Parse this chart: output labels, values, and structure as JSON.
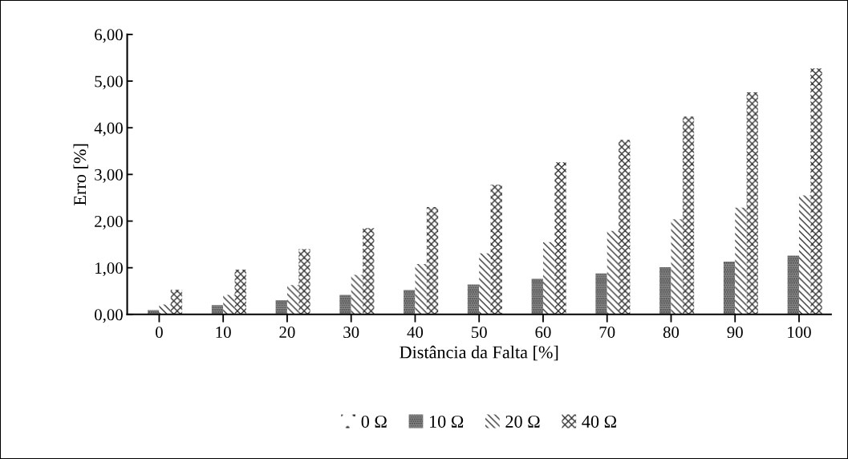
{
  "chart_data": {
    "type": "bar",
    "xlabel": "Distância da Falta [%]",
    "ylabel": "Erro [%]",
    "categories": [
      "0",
      "10",
      "20",
      "30",
      "40",
      "50",
      "60",
      "70",
      "80",
      "90",
      "100"
    ],
    "series": [
      {
        "name": "0 Ω",
        "color": "#ffffff",
        "values": [
          0,
          0,
          0,
          0,
          0,
          0,
          0,
          0,
          0,
          0.01,
          0.01
        ]
      },
      {
        "name": "10 Ω",
        "color": "#909090",
        "values": [
          0.09,
          0.2,
          0.3,
          0.42,
          0.52,
          0.64,
          0.76,
          0.88,
          1.01,
          1.13,
          1.26
        ]
      },
      {
        "name": "20 Ω",
        "color": "#ffffff",
        "values": [
          0.21,
          0.42,
          0.63,
          0.85,
          1.08,
          1.31,
          1.55,
          1.79,
          2.04,
          2.29,
          2.55
        ]
      },
      {
        "name": "40 Ω",
        "color": "#ffffff",
        "values": [
          0.53,
          0.96,
          1.4,
          1.85,
          2.3,
          2.78,
          3.26,
          3.74,
          4.24,
          4.76,
          5.27
        ]
      }
    ],
    "ylim": [
      0,
      6
    ],
    "yticks": [
      {
        "value": 0,
        "label": "0,00"
      },
      {
        "value": 1,
        "label": "1,00"
      },
      {
        "value": 2,
        "label": "2,00"
      },
      {
        "value": 3,
        "label": "3,00"
      },
      {
        "value": 4,
        "label": "4,00"
      },
      {
        "value": 5,
        "label": "5,00"
      },
      {
        "value": 6,
        "label": "6,00"
      }
    ],
    "grid": false,
    "legend": "bottom"
  }
}
